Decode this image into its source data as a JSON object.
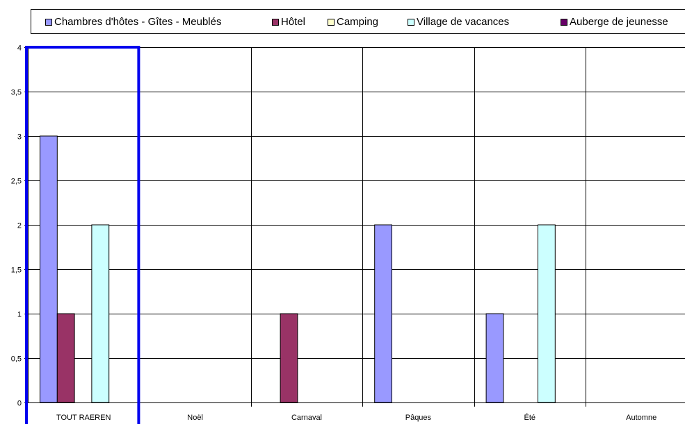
{
  "chart_data": {
    "type": "bar",
    "categories": [
      "TOUT RAEREN",
      "Noël",
      "Carnaval",
      "Pâques",
      "Été",
      "Automne"
    ],
    "series": [
      {
        "name": "Chambres d'hôtes - Gîtes - Meublés",
        "color": "#9999ff",
        "values": [
          3,
          0,
          0,
          2,
          1,
          0
        ]
      },
      {
        "name": "Hôtel",
        "color": "#993366",
        "values": [
          1,
          0,
          1,
          0,
          0,
          0
        ]
      },
      {
        "name": "Camping",
        "color": "#ffffcc",
        "values": [
          0,
          0,
          0,
          0,
          0,
          0
        ]
      },
      {
        "name": "Village de vacances",
        "color": "#ccffff",
        "values": [
          2,
          0,
          0,
          0,
          2,
          0
        ]
      },
      {
        "name": "Auberge de jeunesse",
        "color": "#660066",
        "values": [
          0,
          0,
          0,
          0,
          0,
          0
        ]
      }
    ],
    "ylim": [
      0,
      4
    ],
    "yticks": [
      "0",
      "0,5",
      "1",
      "1,5",
      "2",
      "2,5",
      "3",
      "3,5",
      "4"
    ],
    "grid": true,
    "legend_position": "top",
    "highlight": {
      "category": "TOUT RAEREN",
      "color": "#0000ee"
    }
  }
}
